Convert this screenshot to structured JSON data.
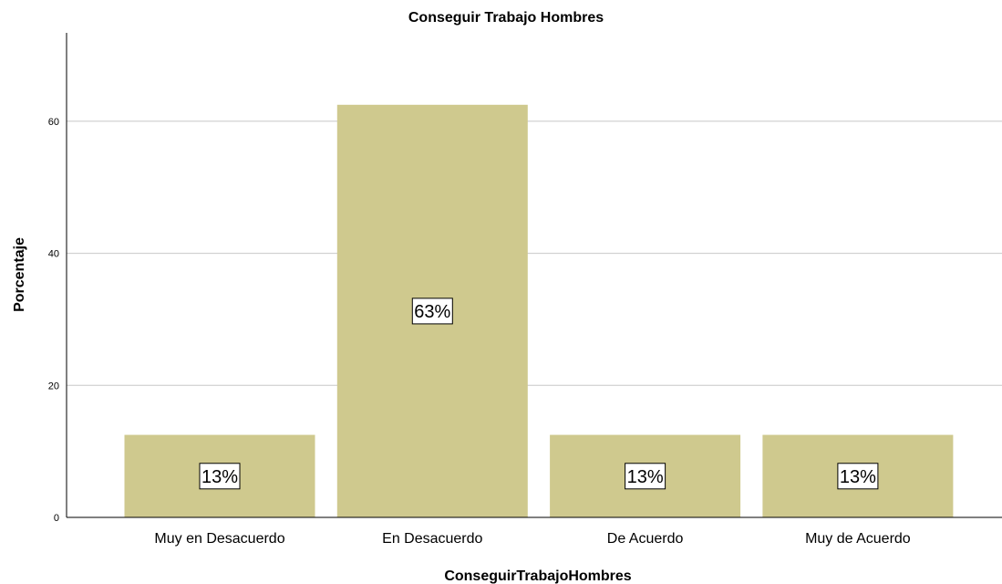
{
  "chart_data": {
    "type": "bar",
    "title": "Conseguir Trabajo Hombres",
    "xlabel": "ConseguirTrabajoHombres",
    "ylabel": "Porcentaje",
    "categories": [
      "Muy en Desacuerdo",
      "En Desacuerdo",
      "De Acuerdo",
      "Muy de Acuerdo"
    ],
    "values": [
      12.5,
      62.5,
      12.5,
      12.5
    ],
    "data_labels": [
      "13%",
      "63%",
      "13%",
      "13%"
    ],
    "yticks": [
      0,
      20,
      40,
      60
    ],
    "ylim": [
      0,
      73
    ],
    "grid": true,
    "bar_color": "#cfc98e",
    "grid_color": "#c8c8c8"
  }
}
